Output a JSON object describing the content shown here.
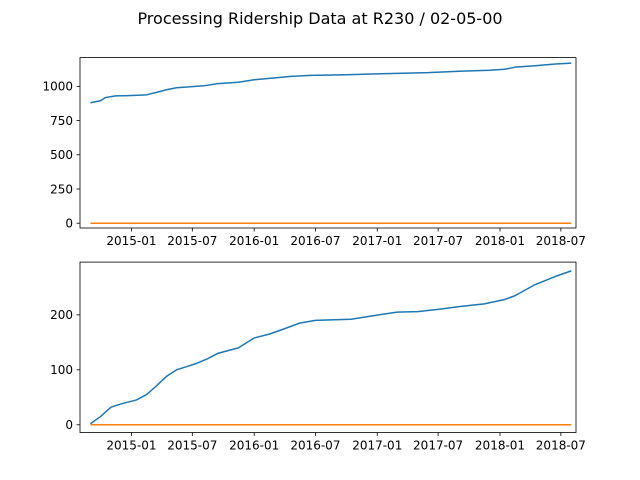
{
  "title": "Processing Ridership Data at R230 / 02-05-00",
  "colors": {
    "series_1": "#1f77b4",
    "series_2": "#ff7f0e",
    "axis": "#000000",
    "background": "#ffffff"
  },
  "chart_data": [
    {
      "type": "line",
      "grid": false,
      "xlim": [
        "2014-08-01",
        "2018-08-15"
      ],
      "ylim": [
        -35,
        1210
      ],
      "x_ticks": [
        "2015-01",
        "2015-07",
        "2016-01",
        "2016-07",
        "2017-01",
        "2017-07",
        "2018-01",
        "2018-07"
      ],
      "y_ticks": [
        0,
        250,
        500,
        750,
        1000
      ],
      "series": [
        {
          "color": "#1f77b4",
          "x": [
            "2014-09-01",
            "2014-10-01",
            "2014-10-15",
            "2014-11-15",
            "2015-01-01",
            "2015-02-15",
            "2015-03-15",
            "2015-04-15",
            "2015-05-15",
            "2015-06-15",
            "2015-08-01",
            "2015-09-15",
            "2015-11-15",
            "2016-01-01",
            "2016-02-15",
            "2016-04-15",
            "2016-06-15",
            "2016-08-01",
            "2016-10-01",
            "2016-12-15",
            "2017-03-01",
            "2017-06-01",
            "2017-09-01",
            "2017-12-01",
            "2018-01-15",
            "2018-02-15",
            "2018-04-15",
            "2018-06-15",
            "2018-08-01"
          ],
          "y": [
            880,
            895,
            918,
            930,
            933,
            938,
            955,
            975,
            990,
            995,
            1003,
            1020,
            1030,
            1048,
            1058,
            1072,
            1080,
            1082,
            1085,
            1090,
            1095,
            1100,
            1110,
            1118,
            1125,
            1140,
            1150,
            1163,
            1170
          ]
        },
        {
          "color": "#ff7f0e",
          "x": [
            "2014-09-01",
            "2018-08-01"
          ],
          "y": [
            0,
            0
          ]
        }
      ]
    },
    {
      "type": "line",
      "grid": false,
      "xlim": [
        "2014-08-01",
        "2018-08-15"
      ],
      "ylim": [
        -14,
        296
      ],
      "x_ticks": [
        "2015-01",
        "2015-07",
        "2016-01",
        "2016-07",
        "2017-01",
        "2017-07",
        "2018-01",
        "2018-07"
      ],
      "y_ticks": [
        0,
        100,
        200
      ],
      "series": [
        {
          "color": "#1f77b4",
          "x": [
            "2014-09-01",
            "2014-10-01",
            "2014-11-01",
            "2014-12-01",
            "2015-01-15",
            "2015-02-15",
            "2015-03-15",
            "2015-04-15",
            "2015-05-15",
            "2015-06-15",
            "2015-07-15",
            "2015-08-15",
            "2015-09-15",
            "2015-10-15",
            "2015-11-15",
            "2016-01-01",
            "2016-02-15",
            "2016-04-01",
            "2016-05-15",
            "2016-07-01",
            "2016-08-15",
            "2016-10-15",
            "2016-12-15",
            "2017-03-01",
            "2017-05-01",
            "2017-07-01",
            "2017-09-01",
            "2017-11-15",
            "2018-01-15",
            "2018-02-15",
            "2018-04-15",
            "2018-06-15",
            "2018-08-01"
          ],
          "y": [
            2,
            15,
            32,
            38,
            45,
            55,
            70,
            88,
            100,
            106,
            112,
            120,
            130,
            135,
            140,
            158,
            165,
            175,
            185,
            190,
            191,
            192,
            198,
            205,
            206,
            210,
            215,
            220,
            228,
            235,
            255,
            270,
            280
          ]
        },
        {
          "color": "#ff7f0e",
          "x": [
            "2014-09-01",
            "2018-08-01"
          ],
          "y": [
            0,
            0
          ]
        }
      ]
    }
  ]
}
